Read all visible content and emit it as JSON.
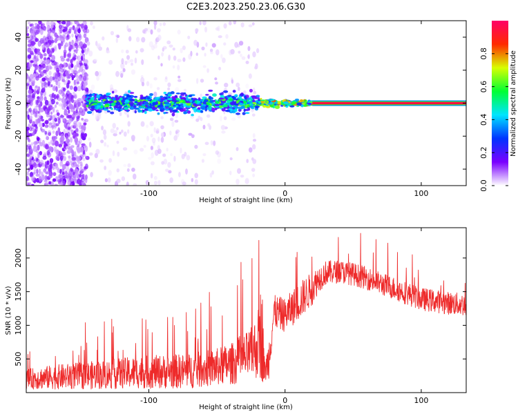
{
  "page_title": "C2E3.2023.250.23.06.G30",
  "chart_data": [
    {
      "type": "heatmap",
      "title": "C2E3.2023.250.23.06.G30",
      "xlabel": "Height of straight line (km)",
      "ylabel": "Frequency (Hz)",
      "xlim": [
        -190,
        133
      ],
      "ylim": [
        -50,
        50
      ],
      "x_ticks": [
        -100,
        0,
        100
      ],
      "x_tick_labels": [
        "-100",
        "0",
        "100"
      ],
      "y_ticks": [
        -40,
        -20,
        0,
        20,
        40
      ],
      "y_tick_labels": [
        "-40",
        "-20",
        "0",
        "20",
        "40"
      ],
      "colorbar": {
        "label": "Normalized spectral amplitude",
        "range": [
          0,
          1
        ],
        "ticks": [
          0.0,
          0.2,
          0.4,
          0.6,
          0.8
        ],
        "tick_labels": [
          "0.0",
          "0.2",
          "0.4",
          "0.6",
          "0.8"
        ],
        "colors": [
          "#ffffff",
          "#7a00ff",
          "#0033ff",
          "#00e5ff",
          "#00ff33",
          "#d8ff00",
          "#ff2b00",
          "#ff0066"
        ]
      },
      "features": [
        {
          "region": "scattered noise",
          "x_range": [
            -190,
            -145
          ],
          "y_range": [
            -50,
            50
          ],
          "amplitude": 0.1
        },
        {
          "region": "sparse noise",
          "x_range": [
            -145,
            -20
          ],
          "y_range": [
            -50,
            50
          ],
          "amplitude": 0.03
        },
        {
          "region": "broad band",
          "x_range": [
            -145,
            -20
          ],
          "y_range": [
            -6,
            6
          ],
          "amplitude": 0.3
        },
        {
          "region": "narrowing band",
          "x_range": [
            -20,
            20
          ],
          "y_range": [
            -2,
            2
          ],
          "amplitude": 0.7
        },
        {
          "region": "steady tone",
          "x_range": [
            20,
            133
          ],
          "y_range": [
            -1,
            1
          ],
          "amplitude": 0.95
        }
      ]
    },
    {
      "type": "line",
      "xlabel": "Height of straight line (km)",
      "ylabel": "SNR (10 * v/v)",
      "xlim": [
        -190,
        133
      ],
      "ylim": [
        0,
        2450
      ],
      "x_ticks": [
        -100,
        0,
        100
      ],
      "x_tick_labels": [
        "-100",
        "0",
        "100"
      ],
      "y_ticks": [
        500,
        1000,
        1500,
        2000
      ],
      "y_tick_labels": [
        "500",
        "1000",
        "1500",
        "2000"
      ],
      "color": "#ee2a2a",
      "series": [
        {
          "x": [
            -190,
            -170,
            -150,
            -130,
            -110,
            -90,
            -70,
            -50,
            -35,
            -25,
            -20,
            -17,
            -15,
            -12,
            -8,
            0,
            10,
            20,
            25,
            30,
            40,
            50,
            60,
            70,
            80,
            90,
            100,
            110,
            120,
            133
          ],
          "y": [
            200,
            230,
            250,
            270,
            300,
            310,
            320,
            380,
            450,
            580,
            700,
            950,
            300,
            500,
            1200,
            1150,
            1350,
            1550,
            1700,
            1780,
            1800,
            1760,
            1700,
            1620,
            1550,
            1470,
            1390,
            1360,
            1330,
            1300
          ],
          "band": [
            150,
            180,
            200,
            220,
            240,
            250,
            260,
            280,
            320,
            380,
            500,
            800,
            150,
            300,
            250,
            250,
            280,
            250,
            200,
            180,
            170,
            170,
            170,
            170,
            170,
            170,
            170,
            170,
            170,
            170
          ]
        }
      ]
    }
  ]
}
